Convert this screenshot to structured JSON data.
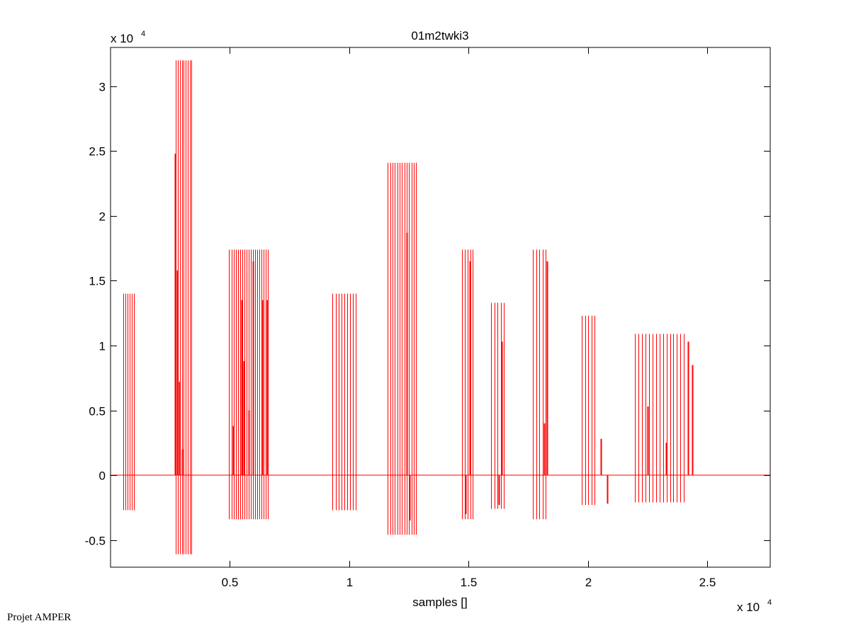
{
  "footer": "Projet AMPER",
  "chart_data": {
    "type": "line",
    "title": "01m2twki3",
    "xlabel": "samples []",
    "ylabel": "",
    "x_multiplier": "x 10",
    "x_exponent": "4",
    "y_multiplier": "x 10",
    "y_exponent": "4",
    "xlim": [
      0,
      27630
    ],
    "ylim": [
      -7100,
      33000
    ],
    "xticks": [
      {
        "v": 5000,
        "label": "0.5"
      },
      {
        "v": 10000,
        "label": "1"
      },
      {
        "v": 15000,
        "label": "1.5"
      },
      {
        "v": 20000,
        "label": "2"
      },
      {
        "v": 25000,
        "label": "2.5"
      }
    ],
    "yticks": [
      {
        "v": -5000,
        "label": "-0.5"
      },
      {
        "v": 0,
        "label": "0"
      },
      {
        "v": 5000,
        "label": "0.5"
      },
      {
        "v": 10000,
        "label": "1"
      },
      {
        "v": 15000,
        "label": "1.5"
      },
      {
        "v": 20000,
        "label": "2"
      },
      {
        "v": 25000,
        "label": "2.5"
      },
      {
        "v": 30000,
        "label": "3"
      }
    ],
    "grid": false,
    "series_color": "#ff0000",
    "baseline": 0,
    "bursts": [
      {
        "start": 549,
        "end": 994,
        "count": 6,
        "max": 14000,
        "min": -2700
      },
      {
        "start": 2744,
        "end": 3397,
        "count": 9,
        "max": 32000,
        "min": -6100
      },
      {
        "start": 4970,
        "end": 6602,
        "count": 19,
        "max": 17400,
        "min": -3400
      },
      {
        "start": 9302,
        "end": 10281,
        "count": 9,
        "max": 14000,
        "min": -2700
      },
      {
        "start": 11616,
        "end": 12803,
        "count": 13,
        "max": 24100,
        "min": -4600
      },
      {
        "start": 14730,
        "end": 15175,
        "count": 5,
        "max": 17400,
        "min": -3400
      },
      {
        "start": 15947,
        "end": 16481,
        "count": 5,
        "max": 13300,
        "min": -2600
      },
      {
        "start": 17698,
        "end": 18232,
        "count": 5,
        "max": 17400,
        "min": -3400
      },
      {
        "start": 19745,
        "end": 20279,
        "count": 5,
        "max": 12300,
        "min": -2300
      },
      {
        "start": 21970,
        "end": 24017,
        "count": 15,
        "max": 10900,
        "min": -2100
      }
    ],
    "spikes": [
      [
        2715,
        24800
      ],
      [
        2804,
        15800
      ],
      [
        2893,
        7200
      ],
      [
        3011,
        2000
      ],
      [
        5148,
        3800
      ],
      [
        5504,
        13500
      ],
      [
        5593,
        8800
      ],
      [
        5801,
        5000
      ],
      [
        5979,
        16500
      ],
      [
        6364,
        13500
      ],
      [
        6572,
        13500
      ],
      [
        12417,
        18700
      ],
      [
        12535,
        -3500
      ],
      [
        14879,
        -3000
      ],
      [
        15057,
        16500
      ],
      [
        16274,
        -2300
      ],
      [
        16393,
        10300
      ],
      [
        18173,
        4000
      ],
      [
        18292,
        16500
      ],
      [
        20547,
        2800
      ],
      [
        20814,
        -2200
      ],
      [
        22483,
        5300
      ],
      [
        23254,
        2500
      ],
      [
        24174,
        10300
      ],
      [
        24352,
        8500
      ]
    ]
  }
}
